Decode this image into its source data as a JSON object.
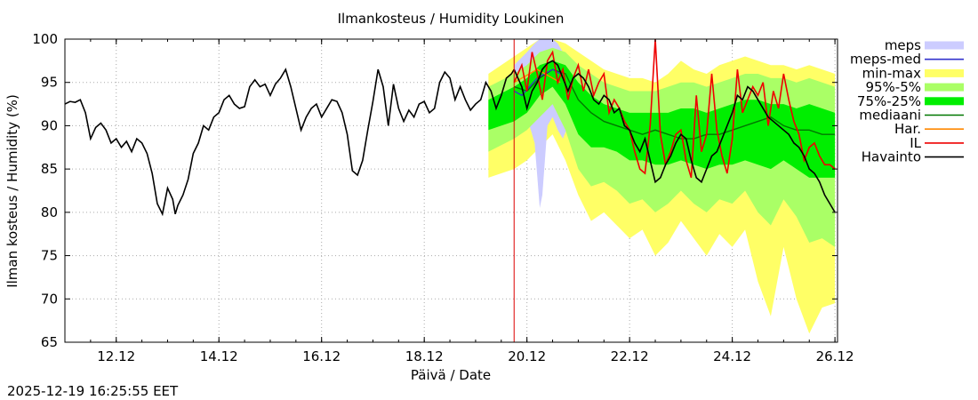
{
  "chart_data": {
    "type": "line",
    "title": "Ilmankosteus / Humidity  Loukinen",
    "xlabel": "Päivä / Date",
    "ylabel": "Ilman kosteus / Humidity (%)",
    "timestamp": "2025-12-19 16:25:55 EET",
    "ylim": [
      65,
      100
    ],
    "xlim": [
      0,
      15.05
    ],
    "x_unit": "days since 2025-12-11 00:00",
    "now_x": 8.75,
    "grid": true,
    "yticks": [
      65,
      70,
      75,
      80,
      85,
      90,
      95,
      100
    ],
    "xticks": [
      {
        "x": 1,
        "label": "12.12"
      },
      {
        "x": 3,
        "label": "14.12"
      },
      {
        "x": 5,
        "label": "16.12"
      },
      {
        "x": 7,
        "label": "18.12"
      },
      {
        "x": 9,
        "label": "20.12"
      },
      {
        "x": 11,
        "label": "22.12"
      },
      {
        "x": 13,
        "label": "24.12"
      },
      {
        "x": 15,
        "label": "26.12"
      }
    ],
    "colors": {
      "meps": "#ccccff",
      "meps_med": "#3333cc",
      "minmax": "#ffff66",
      "p95_5": "#aaff66",
      "p75_25": "#00ee00",
      "mediaani": "#007700",
      "har": "#ff8800",
      "il": "#ee0000",
      "havainto": "#000000",
      "now_line": "#dd0000",
      "grid": "#aaaaaa"
    },
    "legend": [
      {
        "key": "meps",
        "label": "meps",
        "style": "band"
      },
      {
        "key": "meps_med",
        "label": "meps-med",
        "style": "line"
      },
      {
        "key": "minmax",
        "label": "min-max",
        "style": "band"
      },
      {
        "key": "p95_5",
        "label": "95%-5%",
        "style": "band"
      },
      {
        "key": "p75_25",
        "label": "75%-25%",
        "style": "band"
      },
      {
        "key": "mediaani",
        "label": "mediaani",
        "style": "line"
      },
      {
        "key": "har",
        "label": "Har.",
        "style": "line"
      },
      {
        "key": "il",
        "label": "IL",
        "style": "line"
      },
      {
        "key": "havainto",
        "label": "Havainto",
        "style": "line"
      }
    ],
    "series": {
      "havainto_observed": {
        "x": [
          0,
          0.1,
          0.2,
          0.3,
          0.4,
          0.5,
          0.6,
          0.7,
          0.8,
          0.9,
          1.0,
          1.1,
          1.2,
          1.3,
          1.4,
          1.5,
          1.6,
          1.7,
          1.8,
          1.9,
          2.0,
          2.1,
          2.15,
          2.2,
          2.3,
          2.4,
          2.5,
          2.6,
          2.7,
          2.8,
          2.9,
          3.0,
          3.1,
          3.2,
          3.3,
          3.4,
          3.5,
          3.6,
          3.7,
          3.8,
          3.9,
          4.0,
          4.1,
          4.2,
          4.3,
          4.4,
          4.5,
          4.6,
          4.7,
          4.8,
          4.9,
          5.0,
          5.1,
          5.2,
          5.3,
          5.4,
          5.5,
          5.6,
          5.7,
          5.8,
          5.9,
          6.0,
          6.1,
          6.2,
          6.3,
          6.4,
          6.5,
          6.6,
          6.7,
          6.8,
          6.9,
          7.0,
          7.1,
          7.2,
          7.3,
          7.4,
          7.5,
          7.6,
          7.7,
          7.8,
          7.9,
          8.0,
          8.1,
          8.2,
          8.3,
          8.4,
          8.5,
          8.6,
          8.7,
          8.75
        ],
        "y": [
          92.5,
          92.8,
          92.7,
          93.0,
          91.5,
          88.5,
          89.8,
          90.3,
          89.5,
          88.0,
          88.5,
          87.5,
          88.2,
          87.0,
          88.5,
          88.0,
          86.8,
          84.5,
          81.0,
          79.8,
          82.8,
          81.5,
          79.8,
          80.8,
          82.0,
          83.8,
          86.8,
          88.0,
          90.0,
          89.5,
          91.0,
          91.5,
          93.0,
          93.5,
          92.5,
          92.0,
          92.2,
          94.5,
          95.3,
          94.5,
          94.8,
          93.5,
          94.8,
          95.5,
          96.5,
          94.5,
          92.0,
          89.5,
          91.0,
          92.0,
          92.5,
          91.0,
          92.0,
          93.0,
          92.8,
          91.5,
          89.0,
          84.8,
          84.3,
          86.0,
          89.5,
          92.8,
          96.5,
          94.5,
          90.0,
          94.8,
          92.0,
          90.5,
          91.8,
          91.0,
          92.5,
          92.8,
          91.5,
          92.0,
          95.0,
          96.2,
          95.5,
          93.0,
          94.5,
          93.0,
          91.8,
          92.5,
          93.0,
          95.0,
          94.0,
          92.0,
          93.5,
          95.5,
          96.0,
          96.5
        ]
      },
      "havainto_forecast": {
        "x": [
          8.75,
          8.9,
          9.0,
          9.1,
          9.2,
          9.3,
          9.4,
          9.5,
          9.6,
          9.7,
          9.8,
          9.9,
          10.0,
          10.1,
          10.2,
          10.3,
          10.4,
          10.5,
          10.6,
          10.7,
          10.8,
          10.9,
          11.0,
          11.1,
          11.2,
          11.3,
          11.4,
          11.5,
          11.6,
          11.7,
          11.8,
          11.9,
          12.0,
          12.1,
          12.2,
          12.3,
          12.4,
          12.5,
          12.6,
          12.7,
          12.8,
          12.9,
          13.0,
          13.1,
          13.2,
          13.3,
          13.4,
          13.5,
          13.6,
          13.7,
          13.8,
          13.9,
          14.0,
          14.1,
          14.2,
          14.3,
          14.4,
          14.5,
          14.6,
          14.7,
          14.8,
          14.9,
          15.0
        ],
        "y": [
          96.5,
          94.5,
          92.0,
          94.0,
          95.0,
          96.5,
          97.2,
          97.5,
          97.0,
          95.5,
          94.0,
          95.5,
          96.0,
          95.5,
          94.5,
          93.0,
          92.5,
          93.5,
          93.0,
          91.5,
          92.0,
          90.0,
          89.5,
          88.0,
          87.0,
          88.5,
          86.0,
          83.5,
          84.0,
          85.5,
          86.5,
          88.0,
          89.0,
          88.5,
          86.0,
          84.0,
          83.5,
          85.0,
          86.5,
          87.0,
          88.5,
          90.0,
          91.5,
          93.5,
          93.0,
          94.5,
          94.0,
          93.0,
          92.0,
          91.0,
          90.5,
          90.0,
          89.5,
          89.0,
          88.0,
          87.5,
          86.5,
          85.0,
          84.5,
          83.5,
          82.0,
          81.0,
          80.0
        ]
      },
      "il": {
        "x": [
          8.75,
          8.9,
          9.0,
          9.1,
          9.2,
          9.3,
          9.4,
          9.5,
          9.6,
          9.7,
          9.8,
          9.9,
          10.0,
          10.1,
          10.2,
          10.3,
          10.4,
          10.5,
          10.6,
          10.7,
          10.8,
          10.9,
          11.0,
          11.1,
          11.2,
          11.3,
          11.4,
          11.5,
          11.6,
          11.7,
          11.8,
          11.9,
          12.0,
          12.1,
          12.2,
          12.3,
          12.4,
          12.5,
          12.6,
          12.7,
          12.8,
          12.9,
          13.0,
          13.1,
          13.2,
          13.3,
          13.4,
          13.5,
          13.6,
          13.7,
          13.8,
          13.9,
          14.0,
          14.1,
          14.2,
          14.3,
          14.4,
          14.5,
          14.6,
          14.7,
          14.8,
          14.9,
          15.0
        ],
        "y": [
          95.0,
          97.0,
          94.0,
          98.5,
          96.0,
          93.0,
          97.5,
          98.5,
          95.0,
          96.5,
          93.0,
          95.5,
          97.0,
          94.0,
          96.5,
          93.5,
          95.0,
          96.0,
          91.5,
          93.0,
          92.0,
          90.5,
          89.5,
          87.0,
          85.0,
          84.5,
          90.0,
          100.0,
          89.0,
          85.5,
          87.0,
          89.0,
          89.5,
          86.0,
          84.0,
          93.5,
          87.0,
          89.0,
          96.0,
          89.5,
          86.5,
          84.5,
          88.5,
          96.5,
          91.5,
          93.0,
          94.5,
          93.5,
          95.0,
          90.0,
          94.0,
          92.0,
          96.0,
          93.0,
          90.5,
          89.0,
          86.0,
          87.5,
          88.0,
          86.5,
          85.5,
          85.5,
          85.0
        ]
      },
      "mediaani": {
        "x": [
          8.75,
          9.0,
          9.25,
          9.5,
          9.75,
          10.0,
          10.25,
          10.5,
          10.75,
          11.0,
          11.25,
          11.5,
          11.75,
          12.0,
          12.25,
          12.5,
          12.75,
          13.0,
          13.25,
          13.5,
          13.75,
          14.0,
          14.25,
          14.5,
          14.75,
          15.0
        ],
        "y": [
          94.5,
          94.0,
          95.5,
          96.5,
          96.0,
          93.0,
          91.5,
          90.5,
          90.0,
          89.5,
          89.0,
          89.5,
          89.0,
          88.5,
          88.5,
          89.0,
          89.0,
          89.5,
          90.0,
          90.5,
          91.0,
          90.0,
          89.5,
          89.5,
          89.0,
          89.0
        ]
      },
      "meps_med": {
        "x": [
          8.75,
          8.9,
          9.05,
          9.2,
          9.35,
          9.5,
          9.65
        ],
        "y": [
          94.0,
          93.5,
          94.5,
          95.5,
          96.0,
          96.5,
          96.0
        ]
      },
      "har": {
        "x": [
          8.75,
          8.9,
          9.05,
          9.2,
          9.35,
          9.5,
          9.65
        ],
        "y": [
          95.0,
          95.5,
          96.0,
          96.5,
          96.0,
          95.5,
          95.0
        ]
      },
      "band_x": [
        8.25,
        8.75,
        9.0,
        9.25,
        9.5,
        9.75,
        10.0,
        10.25,
        10.5,
        10.75,
        11.0,
        11.25,
        11.5,
        11.75,
        12.0,
        12.25,
        12.5,
        12.75,
        13.0,
        13.25,
        13.5,
        13.75,
        14.0,
        14.25,
        14.5,
        14.75,
        15.0
      ],
      "minmax_upper": [
        96.0,
        98.0,
        99.0,
        100.0,
        100.0,
        99.5,
        98.5,
        97.5,
        96.5,
        96.0,
        95.5,
        95.5,
        95.0,
        96.0,
        97.5,
        96.5,
        96.0,
        97.0,
        97.5,
        98.0,
        97.5,
        97.0,
        97.0,
        96.5,
        97.0,
        96.5,
        96.0
      ],
      "minmax_lower": [
        84.0,
        85.0,
        86.0,
        87.5,
        89.0,
        86.0,
        82.0,
        79.0,
        80.0,
        78.5,
        77.0,
        78.0,
        75.0,
        76.5,
        79.0,
        77.0,
        75.0,
        77.5,
        76.0,
        78.0,
        72.0,
        68.0,
        76.0,
        70.0,
        66.0,
        69.0,
        69.5
      ],
      "p95_upper": [
        94.5,
        96.0,
        97.0,
        98.5,
        99.0,
        98.5,
        97.0,
        96.0,
        95.0,
        94.5,
        94.0,
        94.0,
        94.0,
        94.5,
        95.0,
        95.0,
        94.5,
        95.0,
        95.5,
        96.0,
        96.0,
        95.5,
        95.5,
        95.0,
        95.5,
        95.0,
        94.5
      ],
      "p95_lower": [
        87.0,
        88.5,
        89.5,
        91.0,
        92.5,
        89.5,
        85.0,
        83.0,
        83.5,
        82.5,
        81.0,
        81.5,
        80.0,
        81.0,
        82.5,
        81.0,
        80.0,
        81.5,
        81.0,
        82.5,
        80.0,
        78.5,
        81.5,
        79.5,
        76.5,
        77.0,
        76.0
      ],
      "p75_upper": [
        93.0,
        94.5,
        95.5,
        97.0,
        97.5,
        97.0,
        95.0,
        93.5,
        92.5,
        92.0,
        91.5,
        91.5,
        91.5,
        91.5,
        92.0,
        92.0,
        91.5,
        92.0,
        92.5,
        93.0,
        93.0,
        92.5,
        92.5,
        92.0,
        92.5,
        92.0,
        91.5
      ],
      "p75_lower": [
        89.5,
        90.5,
        91.5,
        93.5,
        94.5,
        92.5,
        89.0,
        87.5,
        87.5,
        87.0,
        86.0,
        86.0,
        85.5,
        85.5,
        86.0,
        85.5,
        85.0,
        85.5,
        85.5,
        86.0,
        85.5,
        85.0,
        86.0,
        85.0,
        84.0,
        84.0,
        84.0
      ],
      "meps_x": [
        8.75,
        9.0,
        9.15,
        9.25,
        9.3,
        9.35,
        9.4,
        9.5,
        9.6,
        9.7,
        9.8,
        9.9
      ],
      "meps_upper": [
        97.0,
        98.5,
        99.5,
        100.0,
        100.0,
        100.0,
        100.0,
        100.0,
        99.5,
        98.5,
        97.0,
        96.5
      ],
      "meps_lower": [
        92.0,
        91.0,
        88.0,
        80.5,
        82.0,
        86.0,
        90.0,
        91.0,
        89.5,
        88.5,
        90.0,
        93.0
      ]
    }
  }
}
